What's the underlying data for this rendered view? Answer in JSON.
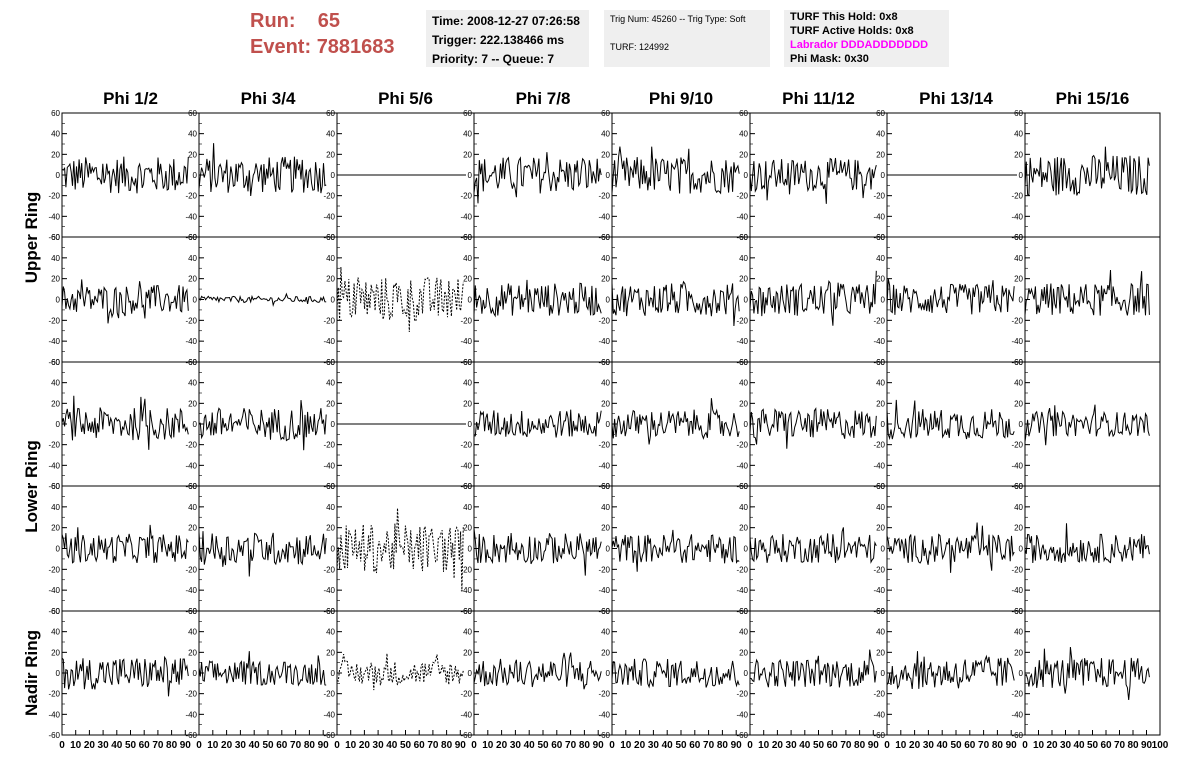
{
  "header": {
    "run_label": "Run:",
    "run_value": "65",
    "event_label": "Event:",
    "event_value": "7881683",
    "time": "Time: 2008-12-27 07:26:58",
    "trigger": "Trigger: 222.138466 ms",
    "priority": "Priority: 7 -- Queue: 7",
    "trig_num": "Trig Num: 45260 -- Trig Type: Soft",
    "turf": "TURF: 124992",
    "turf_hold": "TURF This Hold: 0x8",
    "turf_active": "TURF Active Holds: 0x8",
    "labrador": "Labrador DDDADDDDDDD",
    "phi_mask": "Phi Mask: 0x30"
  },
  "colors": {
    "run_text": "#c0504d",
    "labrador_text": "#ff00ff",
    "info_bg": "#efefef",
    "trace": "#000000"
  },
  "chart_data": {
    "type": "line",
    "title": "",
    "columns": [
      "Phi 1/2",
      "Phi 3/4",
      "Phi 5/6",
      "Phi 7/8",
      "Phi 9/10",
      "Phi 11/12",
      "Phi 13/14",
      "Phi 15/16"
    ],
    "ring_labels": [
      "Upper Ring",
      "Lower Ring",
      "Nadir Ring"
    ],
    "rows": 5,
    "row_ring_groups": [
      [
        0,
        1
      ],
      [
        2,
        3
      ],
      [
        4
      ]
    ],
    "xlim": [
      0,
      100
    ],
    "ylim": [
      -60,
      60
    ],
    "x_ticks": [
      "0",
      "10",
      "20",
      "30",
      "40",
      "50",
      "60",
      "70",
      "80",
      "90",
      "100"
    ],
    "y_ticks": [
      -60,
      -40,
      -20,
      0,
      20,
      40,
      60
    ],
    "x_values": "time samples 0–96, one waveform per panel (values approximated from the plot)",
    "panel_kinds": [
      [
        "wave",
        "wave",
        "flat",
        "wave",
        "wave",
        "wave",
        "flat",
        "wave"
      ],
      [
        "wave",
        "weak",
        "dashed",
        "wave",
        "wave",
        "wave",
        "wave",
        "wave"
      ],
      [
        "wave",
        "wave",
        "flat",
        "wave",
        "wave",
        "wave",
        "wave",
        "wave"
      ],
      [
        "wave",
        "wave",
        "dashed",
        "wave",
        "wave",
        "wave",
        "wave",
        "wave"
      ],
      [
        "wave",
        "wave",
        "dashed",
        "wave",
        "wave",
        "wave",
        "wave",
        "wave"
      ]
    ],
    "panel_amplitudes": [
      [
        18,
        18,
        0,
        18,
        18,
        16,
        0,
        20
      ],
      [
        14,
        3,
        22,
        16,
        16,
        16,
        15,
        16
      ],
      [
        16,
        16,
        0,
        14,
        14,
        15,
        15,
        12
      ],
      [
        14,
        16,
        24,
        15,
        14,
        14,
        14,
        14
      ],
      [
        16,
        12,
        12,
        14,
        14,
        14,
        16,
        15
      ]
    ]
  }
}
